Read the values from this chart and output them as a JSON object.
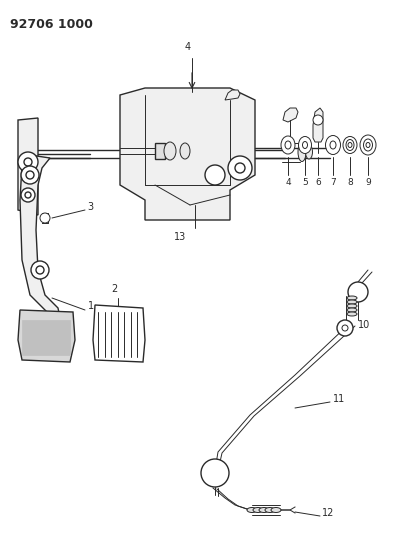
{
  "title": "92706 1000",
  "bg": "#ffffff",
  "lc": "#2a2a2a",
  "fig_w": 4.05,
  "fig_h": 5.33,
  "dpi": 100,
  "xlim": [
    0,
    405
  ],
  "ylim": [
    0,
    533
  ]
}
